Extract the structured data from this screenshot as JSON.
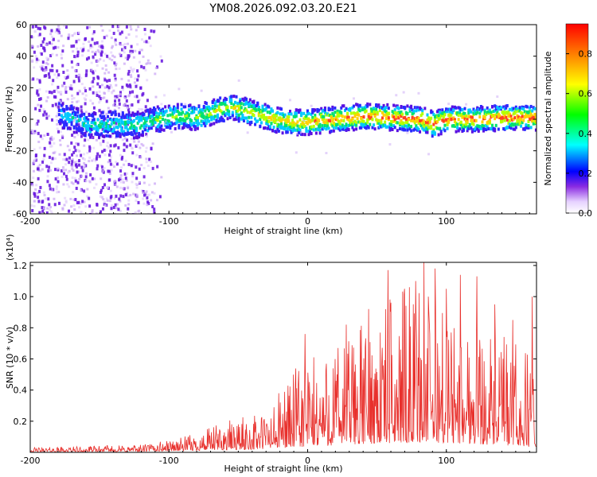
{
  "title": "YM08.2026.092.03.20.E21",
  "chart_data": [
    {
      "type": "heatmap",
      "name": "spectrogram",
      "xlabel": "Height of straight line (km)",
      "ylabel": "Frequency (Hz)",
      "xlim": [
        -200,
        165
      ],
      "ylim": [
        -60,
        60
      ],
      "xticks": [
        -200,
        -100,
        0,
        100
      ],
      "yticks": [
        -60,
        -40,
        -20,
        0,
        20,
        40,
        60
      ],
      "colorbar": {
        "label": "Normalized spectral amplitude",
        "range": [
          0.0,
          0.95
        ],
        "ticks": [
          0.0,
          0.2,
          0.4,
          0.6,
          0.8
        ]
      },
      "signal_band_center": [
        [
          -175,
          2
        ],
        [
          -160,
          -4
        ],
        [
          -140,
          -3
        ],
        [
          -125,
          -4
        ],
        [
          -110,
          0
        ],
        [
          -95,
          2
        ],
        [
          -80,
          1
        ],
        [
          -65,
          6
        ],
        [
          -55,
          8
        ],
        [
          -45,
          5
        ],
        [
          -35,
          3
        ],
        [
          -25,
          0
        ],
        [
          -10,
          -2
        ],
        [
          0,
          -2
        ],
        [
          20,
          0
        ],
        [
          40,
          2
        ],
        [
          60,
          1
        ],
        [
          80,
          0
        ],
        [
          90,
          -3
        ],
        [
          100,
          0
        ],
        [
          120,
          0
        ],
        [
          140,
          1
        ],
        [
          160,
          1
        ]
      ]
    },
    {
      "type": "line",
      "name": "snr",
      "xlabel": "Height of straight line (km)",
      "ylabel": "SNR (10 * v/v)",
      "yscale_label": "(x10⁴)",
      "xlim": [
        -200,
        165
      ],
      "ylim": [
        0,
        1.22
      ],
      "xticks": [
        -200,
        -100,
        0,
        100
      ],
      "yticks": [
        0.2,
        0.4,
        0.6,
        0.8,
        1.0,
        1.2
      ],
      "color": "#e8302c",
      "envelope": [
        [
          -200,
          0.01,
          0.03
        ],
        [
          -160,
          0.01,
          0.04
        ],
        [
          -120,
          0.02,
          0.05
        ],
        [
          -100,
          0.03,
          0.08
        ],
        [
          -80,
          0.04,
          0.12
        ],
        [
          -60,
          0.05,
          0.2
        ],
        [
          -40,
          0.06,
          0.24
        ],
        [
          -25,
          0.08,
          0.3
        ],
        [
          -15,
          0.1,
          0.5
        ],
        [
          0,
          0.12,
          0.6
        ],
        [
          20,
          0.15,
          0.7
        ],
        [
          40,
          0.18,
          0.85
        ],
        [
          60,
          0.2,
          1.0
        ],
        [
          80,
          0.22,
          1.1
        ],
        [
          100,
          0.2,
          0.95
        ],
        [
          120,
          0.18,
          0.85
        ],
        [
          140,
          0.15,
          0.75
        ],
        [
          160,
          0.12,
          0.65
        ],
        [
          165,
          0.1,
          0.8
        ]
      ],
      "peaks": [
        [
          -2,
          0.76
        ],
        [
          28,
          0.82
        ],
        [
          44,
          0.92
        ],
        [
          58,
          1.17
        ],
        [
          70,
          1.05
        ],
        [
          78,
          1.1
        ],
        [
          84,
          1.22
        ],
        [
          92,
          1.18
        ],
        [
          100,
          1.05
        ],
        [
          110,
          1.14
        ],
        [
          122,
          1.13
        ],
        [
          135,
          0.95
        ],
        [
          148,
          0.85
        ],
        [
          162,
          1.0
        ]
      ]
    }
  ]
}
